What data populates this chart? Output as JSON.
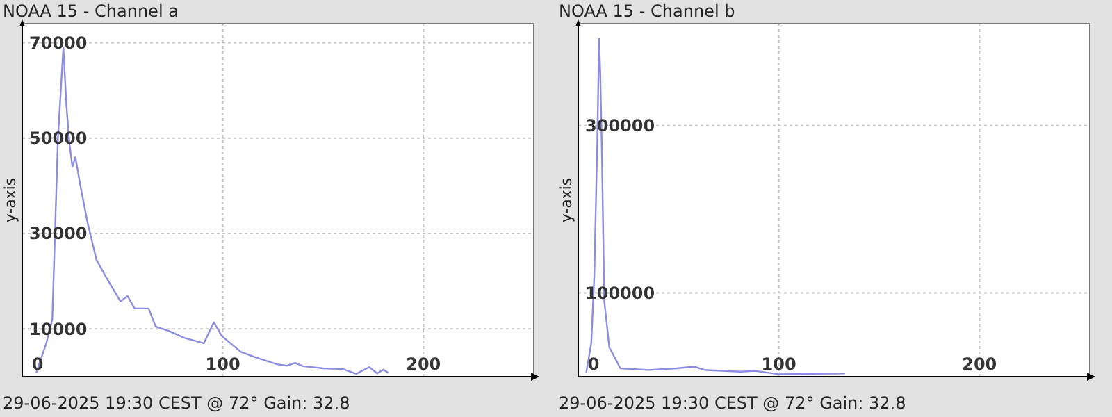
{
  "chart_data": [
    {
      "type": "line",
      "title": "NOAA 15 - Channel a",
      "ylabel": "y-axis",
      "annotations": [
        "29-06-2025 19:30 CEST @ 72° Gain: 32.8"
      ],
      "xlim": [
        0,
        255
      ],
      "xticks": [
        0,
        100,
        200
      ],
      "ylim": [
        0,
        74000
      ],
      "yticks": [
        10000,
        30000,
        50000,
        70000
      ],
      "grid": true,
      "series": [
        {
          "color": "#8c8ce0",
          "x": [
            7,
            12,
            15,
            17.8,
            20.5,
            22,
            23.5,
            25,
            26.5,
            29,
            32.5,
            37,
            42,
            49,
            52.5,
            56,
            63,
            66.5,
            73,
            81,
            90.5,
            95.5,
            99.5,
            109,
            116,
            127,
            132,
            136,
            140,
            150,
            160,
            166.5,
            173,
            177,
            180,
            182.5
          ],
          "values": [
            900,
            7000,
            12000,
            50000,
            69000,
            57000,
            49000,
            44000,
            46000,
            40000,
            32400,
            24500,
            20700,
            15800,
            16900,
            14300,
            14300,
            10500,
            9600,
            8100,
            7000,
            11400,
            8500,
            5200,
            4100,
            2600,
            2300,
            2900,
            2200,
            1750,
            1600,
            600,
            2000,
            700,
            1500,
            800
          ]
        }
      ]
    },
    {
      "type": "line",
      "title": "NOAA 15 - Channel b",
      "ylabel": "y-axis",
      "annotations": [
        "29-06-2025 19:30 CEST @ 72° Gain: 32.8"
      ],
      "xlim": [
        0,
        255
      ],
      "xticks": [
        0,
        100,
        200
      ],
      "ylim": [
        0,
        422000
      ],
      "yticks": [
        100000,
        300000
      ],
      "grid": true,
      "series": [
        {
          "color": "#8c8ce0",
          "x": [
            4,
            6.5,
            8,
            9.5,
            10.4,
            11,
            11.8,
            13,
            15.5,
            21,
            35,
            49,
            58,
            63,
            81,
            88,
            100,
            133
          ],
          "values": [
            5000,
            40000,
            120000,
            280000,
            404000,
            362000,
            268000,
            90000,
            35000,
            10000,
            8000,
            10000,
            12000,
            8000,
            6000,
            7000,
            3000,
            4000
          ]
        }
      ]
    }
  ]
}
